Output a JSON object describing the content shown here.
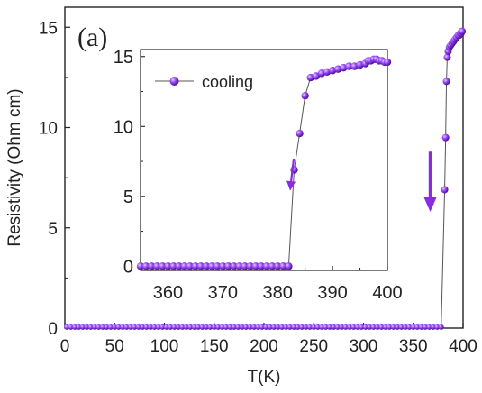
{
  "chart_data": [
    {
      "type": "scatter",
      "panel_label": "(a)",
      "xlabel": "T(K)",
      "ylabel": "Resistivity (Ohm cm)",
      "xlim": [
        0,
        400
      ],
      "ylim": [
        0,
        16
      ],
      "xticks": [
        0,
        50,
        100,
        150,
        200,
        250,
        300,
        350,
        400
      ],
      "yticks": [
        0,
        5,
        10,
        15
      ],
      "marker_color": "#8a2be2",
      "line_color": "#555555",
      "arrow_color": "#8a2be2",
      "arrow": {
        "x": 367,
        "y_start": 8.8,
        "y_end": 5.8
      },
      "series": [
        {
          "x": [
            2,
            6,
            10,
            14,
            18,
            22,
            26,
            30,
            34,
            38,
            42,
            46,
            50,
            54,
            58,
            62,
            66,
            70,
            74,
            78,
            82,
            86,
            90,
            94,
            98,
            102,
            106,
            110,
            114,
            118,
            122,
            126,
            130,
            134,
            138,
            142,
            146,
            150,
            154,
            158,
            162,
            166,
            170,
            174,
            178,
            182,
            186,
            190,
            194,
            198,
            202,
            206,
            210,
            214,
            218,
            222,
            226,
            230,
            234,
            238,
            242,
            246,
            250,
            254,
            258,
            262,
            266,
            270,
            274,
            278,
            282,
            286,
            290,
            294,
            298,
            302,
            306,
            310,
            314,
            318,
            322,
            326,
            330,
            334,
            338,
            342,
            346,
            350,
            354,
            358,
            362,
            366,
            370,
            374,
            378,
            381.5,
            382.5,
            383.3,
            384.1,
            385,
            386.2,
            387.5,
            389,
            390.5,
            392,
            393.5,
            395,
            396.2,
            397.2,
            398,
            398.6,
            399.2
          ],
          "y": [
            0.05,
            0.05,
            0.05,
            0.05,
            0.05,
            0.05,
            0.05,
            0.05,
            0.05,
            0.05,
            0.05,
            0.05,
            0.05,
            0.05,
            0.05,
            0.05,
            0.05,
            0.05,
            0.05,
            0.05,
            0.05,
            0.05,
            0.05,
            0.05,
            0.05,
            0.05,
            0.05,
            0.05,
            0.05,
            0.05,
            0.05,
            0.05,
            0.05,
            0.05,
            0.05,
            0.05,
            0.05,
            0.05,
            0.05,
            0.05,
            0.05,
            0.05,
            0.05,
            0.05,
            0.05,
            0.05,
            0.05,
            0.05,
            0.05,
            0.05,
            0.05,
            0.05,
            0.05,
            0.05,
            0.05,
            0.05,
            0.05,
            0.05,
            0.05,
            0.05,
            0.05,
            0.05,
            0.05,
            0.05,
            0.05,
            0.05,
            0.05,
            0.05,
            0.05,
            0.05,
            0.05,
            0.05,
            0.05,
            0.05,
            0.05,
            0.05,
            0.05,
            0.05,
            0.05,
            0.05,
            0.05,
            0.05,
            0.05,
            0.05,
            0.05,
            0.05,
            0.05,
            0.05,
            0.05,
            0.05,
            0.05,
            0.05,
            0.05,
            0.05,
            0.05,
            6.9,
            9.5,
            12.3,
            13.5,
            13.8,
            14.0,
            14.1,
            14.2,
            14.3,
            14.4,
            14.5,
            14.6,
            14.6,
            14.7,
            14.7,
            14.8,
            14.8
          ]
        }
      ]
    },
    {
      "type": "scatter",
      "inset": true,
      "legend": [
        "cooling"
      ],
      "legend_position": "top-left",
      "xlim": [
        355,
        400
      ],
      "ylim": [
        -0.3,
        15.5
      ],
      "xticks": [
        360,
        370,
        380,
        390,
        400
      ],
      "yticks": [
        0,
        5,
        10,
        15
      ],
      "arrow": {
        "x": 382.6,
        "y_start": 7.7,
        "y_end": 5.4
      },
      "series": [
        {
          "name": "cooling",
          "x": [
            355,
            356,
            357,
            358,
            359,
            360,
            361,
            362,
            363,
            364,
            365,
            366,
            367,
            368,
            369,
            370,
            371,
            372,
            373,
            374,
            375,
            376,
            377,
            378,
            379,
            380,
            381,
            382,
            383,
            384,
            385,
            386,
            387,
            388,
            389,
            390,
            391,
            392,
            393,
            394,
            395,
            396,
            396.5,
            397,
            397.5,
            398,
            398.5,
            399,
            399.5,
            400
          ],
          "y": [
            0,
            0,
            0,
            0,
            0,
            0,
            0,
            0,
            0,
            0,
            0,
            0,
            0,
            0,
            0,
            0,
            0,
            0,
            0,
            0,
            0,
            0,
            0,
            0,
            0,
            0,
            0,
            0,
            6.9,
            9.5,
            12.2,
            13.5,
            13.6,
            13.8,
            13.9,
            14.0,
            14.1,
            14.2,
            14.3,
            14.3,
            14.4,
            14.5,
            14.7,
            14.7,
            14.8,
            14.8,
            14.7,
            14.7,
            14.6,
            14.6
          ]
        }
      ]
    }
  ]
}
